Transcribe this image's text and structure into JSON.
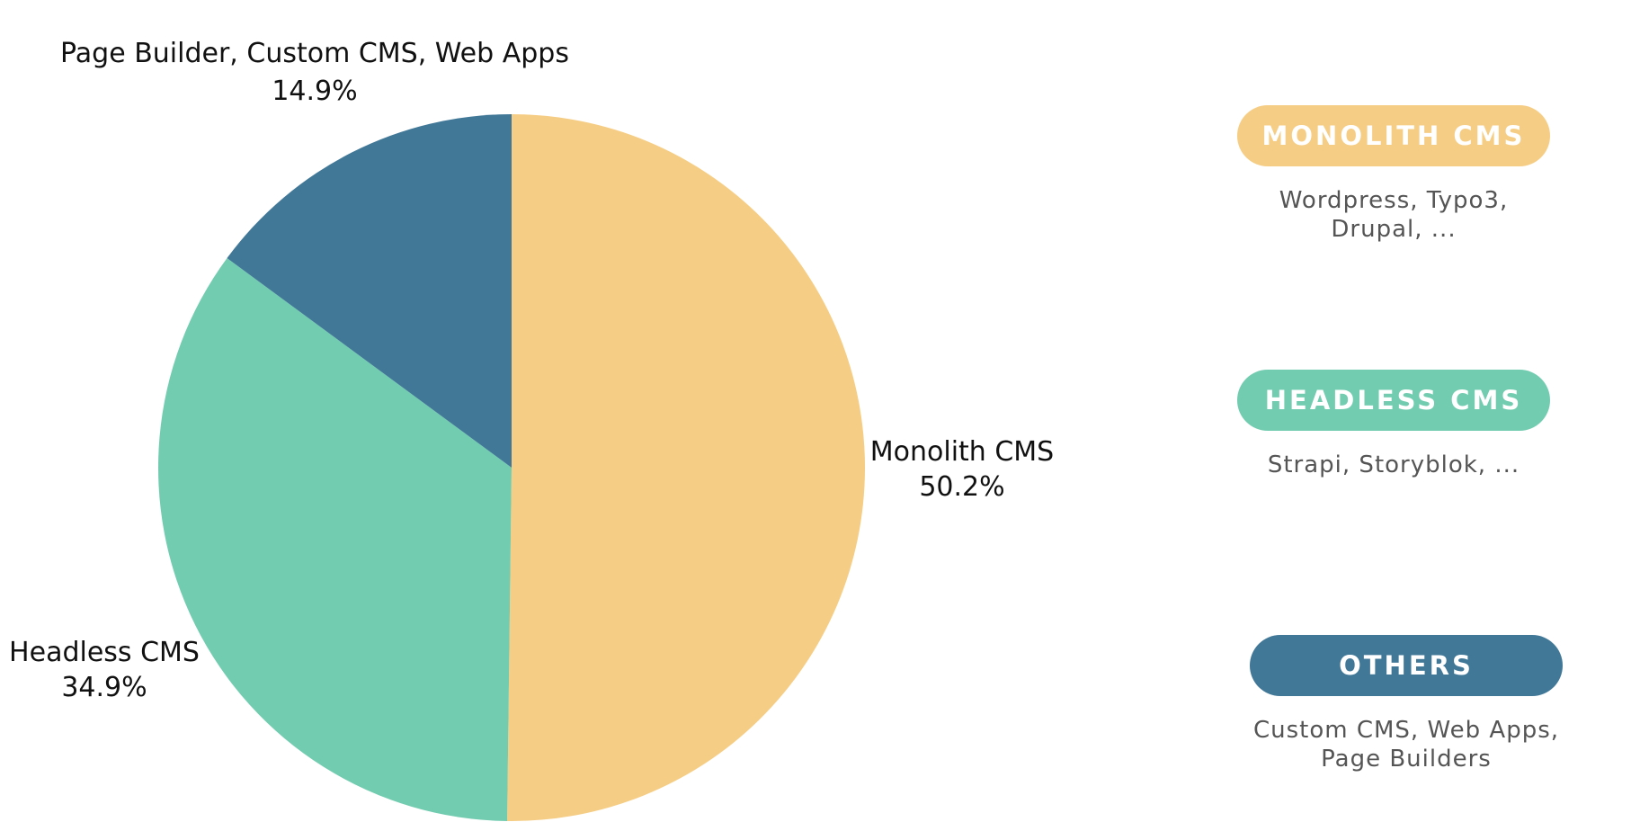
{
  "chart_data": {
    "type": "pie",
    "slices": [
      {
        "name": "Monolith CMS",
        "value": 50.2,
        "label": "50.2%",
        "color": "#F6CD84"
      },
      {
        "name": "Headless CMS",
        "value": 34.9,
        "label": "34.9%",
        "color": "#72CCB0"
      },
      {
        "name": "Page Builder, Custom CMS, Web Apps",
        "value": 14.9,
        "label": "14.9%",
        "color": "#417898"
      }
    ],
    "legend_placement": "right"
  },
  "legend": [
    {
      "title": "MONOLITH CMS",
      "color": "#F6CD84",
      "desc": [
        "Wordpress, Typo3,",
        "Drupal, ..."
      ]
    },
    {
      "title": "HEADLESS CMS",
      "color": "#72CCB0",
      "desc": [
        "Strapi, Storyblok, ..."
      ]
    },
    {
      "title": "OTHERS",
      "color": "#417898",
      "desc": [
        "Custom CMS, Web Apps,",
        "Page Builders"
      ]
    }
  ]
}
